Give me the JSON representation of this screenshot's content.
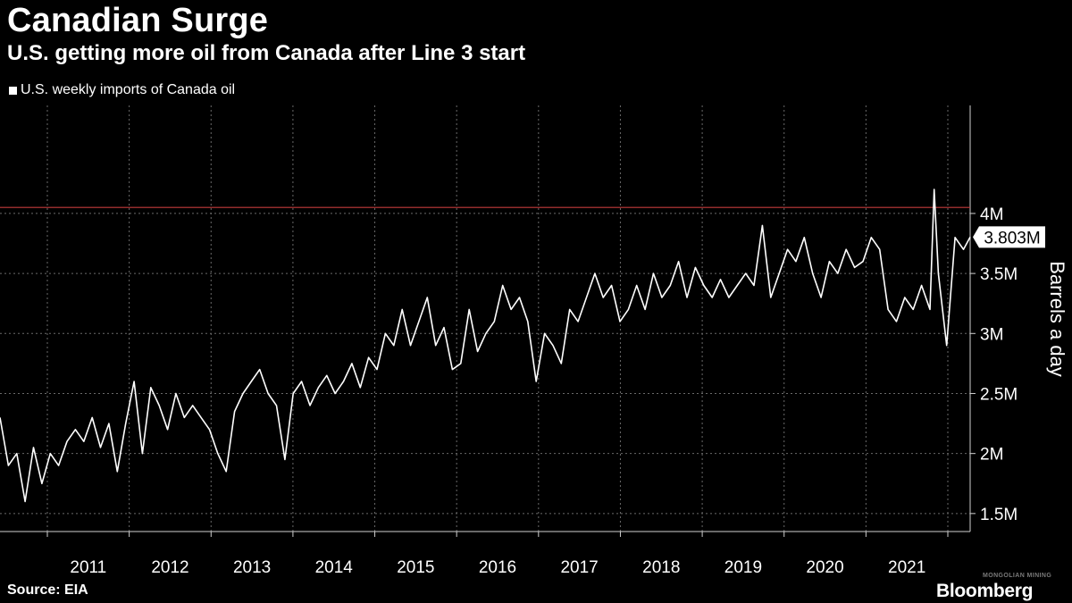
{
  "title": "Canadian Surge",
  "subtitle": "U.S. getting more oil from Canada after Line 3 start",
  "legend": {
    "label": "U.S. weekly imports of Canada oil"
  },
  "source": "Source: EIA",
  "brand": "Bloomberg",
  "watermark": "MONGOLIAN MINING",
  "colors": {
    "background": "#000000",
    "line": "#ffffff",
    "reference_line": "#c23b3b",
    "grid": "#6a6a6a"
  },
  "chart_data": {
    "type": "line",
    "ylabel": "Barrels a day",
    "xlim": [
      2010.0,
      2021.58
    ],
    "ylim": [
      1.35,
      4.9
    ],
    "y_ticks": [
      1.5,
      2.0,
      2.5,
      3.0,
      3.5,
      4.0
    ],
    "y_tick_labels": [
      "1.5M",
      "2M",
      "2.5M",
      "3M",
      "3.5M",
      "4M"
    ],
    "x_tick_labels": [
      "2011",
      "2012",
      "2013",
      "2014",
      "2015",
      "2016",
      "2017",
      "2018",
      "2019",
      "2020",
      "2021"
    ],
    "grid": true,
    "reference_line": 4.05,
    "last_value_label": "3.803M",
    "last_value": 3.803,
    "series": [
      {
        "name": "U.S. weekly imports of Canada oil",
        "points": [
          [
            2010.0,
            2.3
          ],
          [
            2010.1,
            1.9
          ],
          [
            2010.2,
            2.0
          ],
          [
            2010.3,
            1.6
          ],
          [
            2010.4,
            2.05
          ],
          [
            2010.5,
            1.75
          ],
          [
            2010.6,
            2.0
          ],
          [
            2010.7,
            1.9
          ],
          [
            2010.8,
            2.1
          ],
          [
            2010.9,
            2.2
          ],
          [
            2011.0,
            2.1
          ],
          [
            2011.1,
            2.3
          ],
          [
            2011.2,
            2.05
          ],
          [
            2011.3,
            2.25
          ],
          [
            2011.4,
            1.85
          ],
          [
            2011.5,
            2.25
          ],
          [
            2011.6,
            2.6
          ],
          [
            2011.7,
            2.0
          ],
          [
            2011.8,
            2.55
          ],
          [
            2011.9,
            2.4
          ],
          [
            2012.0,
            2.2
          ],
          [
            2012.1,
            2.5
          ],
          [
            2012.2,
            2.3
          ],
          [
            2012.3,
            2.4
          ],
          [
            2012.4,
            2.3
          ],
          [
            2012.5,
            2.2
          ],
          [
            2012.6,
            2.0
          ],
          [
            2012.7,
            1.85
          ],
          [
            2012.8,
            2.35
          ],
          [
            2012.9,
            2.5
          ],
          [
            2013.0,
            2.6
          ],
          [
            2013.1,
            2.7
          ],
          [
            2013.2,
            2.5
          ],
          [
            2013.3,
            2.4
          ],
          [
            2013.4,
            1.95
          ],
          [
            2013.5,
            2.5
          ],
          [
            2013.6,
            2.6
          ],
          [
            2013.7,
            2.4
          ],
          [
            2013.8,
            2.55
          ],
          [
            2013.9,
            2.65
          ],
          [
            2014.0,
            2.5
          ],
          [
            2014.1,
            2.6
          ],
          [
            2014.2,
            2.75
          ],
          [
            2014.3,
            2.55
          ],
          [
            2014.4,
            2.8
          ],
          [
            2014.5,
            2.7
          ],
          [
            2014.6,
            3.0
          ],
          [
            2014.7,
            2.9
          ],
          [
            2014.8,
            3.2
          ],
          [
            2014.9,
            2.9
          ],
          [
            2015.0,
            3.1
          ],
          [
            2015.1,
            3.3
          ],
          [
            2015.2,
            2.9
          ],
          [
            2015.3,
            3.05
          ],
          [
            2015.4,
            2.7
          ],
          [
            2015.5,
            2.75
          ],
          [
            2015.6,
            3.2
          ],
          [
            2015.7,
            2.85
          ],
          [
            2015.8,
            3.0
          ],
          [
            2015.9,
            3.1
          ],
          [
            2016.0,
            3.4
          ],
          [
            2016.1,
            3.2
          ],
          [
            2016.2,
            3.3
          ],
          [
            2016.3,
            3.1
          ],
          [
            2016.4,
            2.6
          ],
          [
            2016.5,
            3.0
          ],
          [
            2016.6,
            2.9
          ],
          [
            2016.7,
            2.75
          ],
          [
            2016.8,
            3.2
          ],
          [
            2016.9,
            3.1
          ],
          [
            2017.0,
            3.3
          ],
          [
            2017.1,
            3.5
          ],
          [
            2017.2,
            3.3
          ],
          [
            2017.3,
            3.4
          ],
          [
            2017.4,
            3.1
          ],
          [
            2017.5,
            3.2
          ],
          [
            2017.6,
            3.4
          ],
          [
            2017.7,
            3.2
          ],
          [
            2017.8,
            3.5
          ],
          [
            2017.9,
            3.3
          ],
          [
            2018.0,
            3.4
          ],
          [
            2018.1,
            3.6
          ],
          [
            2018.2,
            3.3
          ],
          [
            2018.3,
            3.55
          ],
          [
            2018.4,
            3.4
          ],
          [
            2018.5,
            3.3
          ],
          [
            2018.6,
            3.45
          ],
          [
            2018.7,
            3.3
          ],
          [
            2018.8,
            3.4
          ],
          [
            2018.9,
            3.5
          ],
          [
            2019.0,
            3.4
          ],
          [
            2019.1,
            3.9
          ],
          [
            2019.2,
            3.3
          ],
          [
            2019.3,
            3.5
          ],
          [
            2019.4,
            3.7
          ],
          [
            2019.5,
            3.6
          ],
          [
            2019.6,
            3.8
          ],
          [
            2019.7,
            3.5
          ],
          [
            2019.8,
            3.3
          ],
          [
            2019.9,
            3.6
          ],
          [
            2020.0,
            3.5
          ],
          [
            2020.1,
            3.7
          ],
          [
            2020.2,
            3.55
          ],
          [
            2020.3,
            3.6
          ],
          [
            2020.4,
            3.8
          ],
          [
            2020.5,
            3.7
          ],
          [
            2020.6,
            3.2
          ],
          [
            2020.7,
            3.1
          ],
          [
            2020.8,
            3.3
          ],
          [
            2020.9,
            3.2
          ],
          [
            2021.0,
            3.4
          ],
          [
            2021.1,
            3.2
          ],
          [
            2021.15,
            4.2
          ],
          [
            2021.2,
            3.5
          ],
          [
            2021.3,
            2.9
          ],
          [
            2021.4,
            3.8
          ],
          [
            2021.5,
            3.7
          ],
          [
            2021.58,
            3.803
          ]
        ]
      }
    ]
  }
}
